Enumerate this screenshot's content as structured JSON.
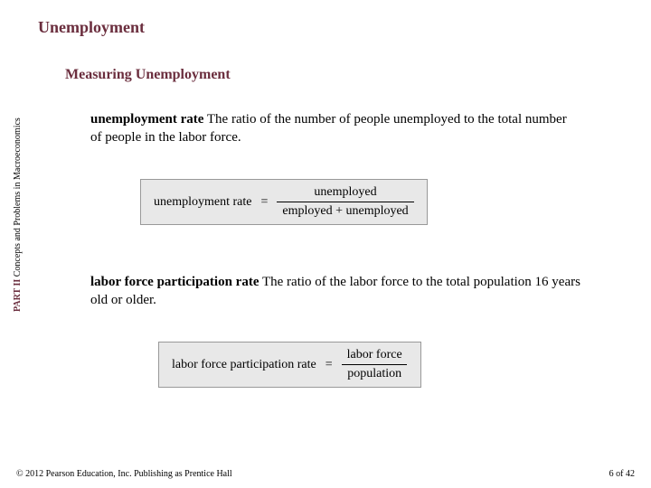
{
  "title": "Unemployment",
  "subtitle": "Measuring Unemployment",
  "def1": {
    "term": "unemployment rate",
    "text": "  The ratio of the number of people unemployed to the total number of people in the labor force."
  },
  "formula1": {
    "lhs": "unemployment rate",
    "eq": "=",
    "num": "unemployed",
    "den": "employed + unemployed"
  },
  "def2": {
    "term": "labor force participation rate",
    "text": "  The ratio of the labor force to the total population 16 years old or older."
  },
  "formula2": {
    "lhs": "labor force participation rate",
    "eq": "=",
    "num": "labor force",
    "den": "population"
  },
  "sidebar": {
    "part": "PART II ",
    "rest": "Concepts and Problems in Macroeconomics"
  },
  "footer": {
    "copyright": "© 2012 Pearson Education, Inc. Publishing as Prentice Hall",
    "page": "6 of 42"
  }
}
